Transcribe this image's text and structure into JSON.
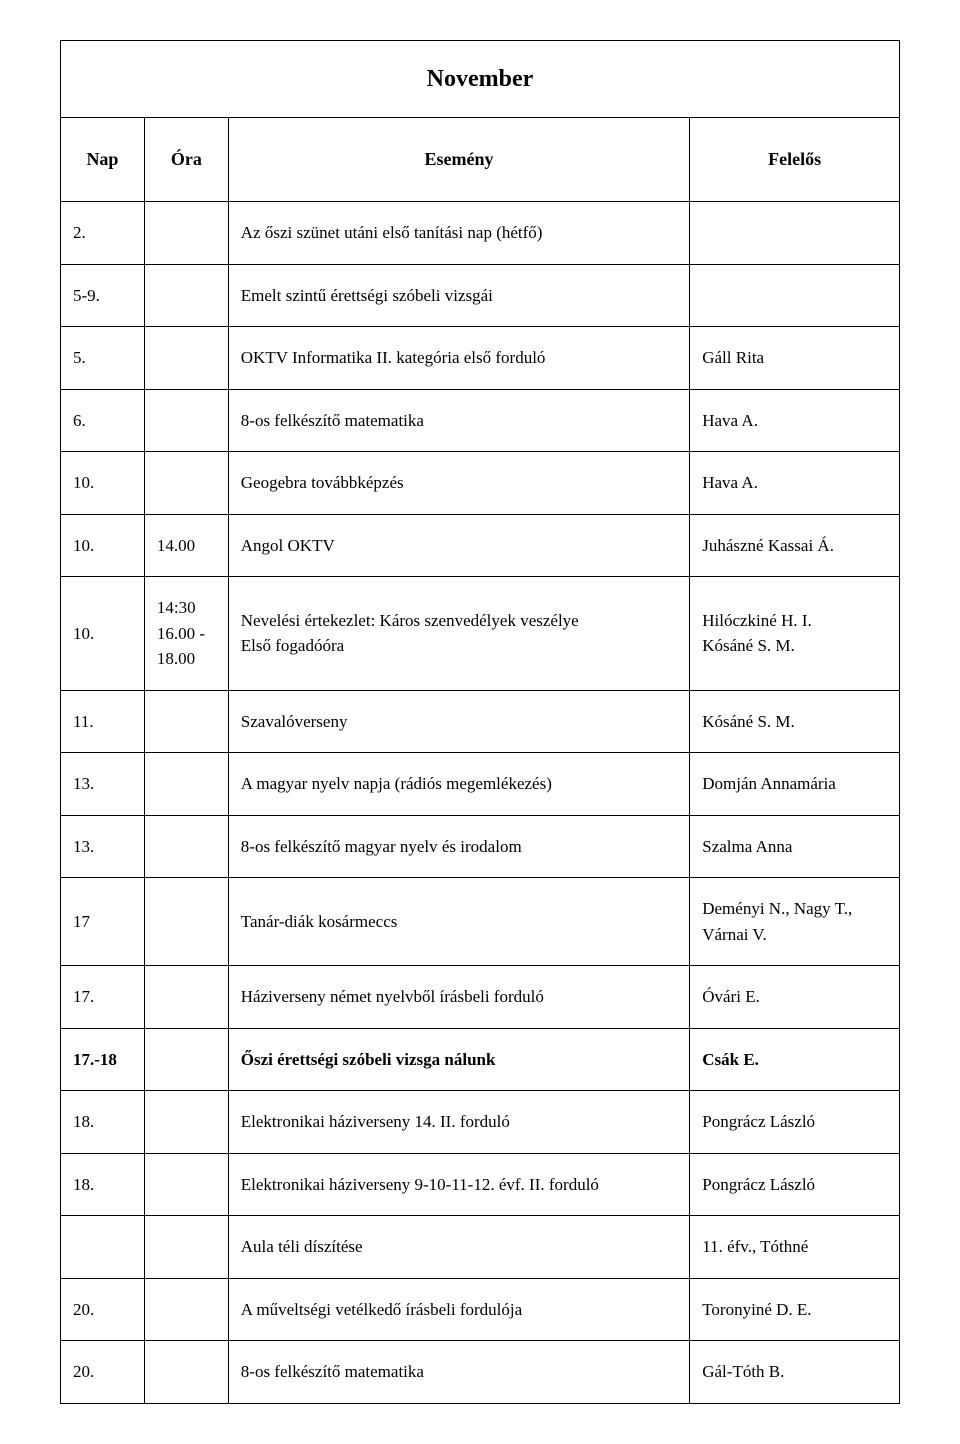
{
  "title": "November",
  "columns": {
    "nap": "Nap",
    "ora": "Óra",
    "esemeny": "Esemény",
    "felelos": "Felelős"
  },
  "rows": [
    {
      "nap": "2.",
      "ora": "",
      "esemeny": "Az őszi szünet utáni első tanítási nap (hétfő)",
      "felelos": "",
      "bold": false
    },
    {
      "nap": "5-9.",
      "ora": "",
      "esemeny": "Emelt szintű érettségi szóbeli vizsgái",
      "felelos": "",
      "bold": false
    },
    {
      "nap": "5.",
      "ora": "",
      "esemeny": "OKTV Informatika II. kategória első forduló",
      "felelos": "Gáll Rita",
      "bold": false
    },
    {
      "nap": "6.",
      "ora": "",
      "esemeny": "8-os felkészítő matematika",
      "felelos": "Hava A.",
      "bold": false
    },
    {
      "nap": "10.",
      "ora": "",
      "esemeny": "Geogebra továbbképzés",
      "felelos": "Hava A.",
      "bold": false
    },
    {
      "nap": "10.",
      "ora": "14.00",
      "esemeny": "Angol OKTV",
      "felelos": "Juhászné Kassai Á.",
      "bold": false
    },
    {
      "nap": "10.",
      "ora": "14:30\n16.00 - 18.00",
      "esemeny": "Nevelési értekezlet: Káros szenvedélyek veszélye\nElső fogadóóra",
      "felelos": "Hilóczkiné H. I.\nKósáné S. M.",
      "bold": false
    },
    {
      "nap": "11.",
      "ora": "",
      "esemeny": "Szavalóverseny",
      "felelos": "Kósáné S. M.",
      "bold": false
    },
    {
      "nap": "13.",
      "ora": "",
      "esemeny": "A magyar nyelv napja (rádiós megemlékezés)",
      "felelos": "Domján Annamária",
      "bold": false
    },
    {
      "nap": "13.",
      "ora": "",
      "esemeny": "8-os felkészítő magyar nyelv és irodalom",
      "felelos": "Szalma Anna",
      "bold": false
    },
    {
      "nap": "17",
      "ora": "",
      "esemeny": "Tanár-diák kosármeccs",
      "felelos": "Deményi N., Nagy T., Várnai V.",
      "bold": false
    },
    {
      "nap": "17.",
      "ora": "",
      "esemeny": "Háziverseny német nyelvből írásbeli forduló",
      "felelos": "Óvári E.",
      "bold": false
    },
    {
      "nap": "17.-18",
      "ora": "",
      "esemeny": "Őszi érettségi szóbeli vizsga nálunk",
      "felelos": "Csák E.",
      "bold": true
    },
    {
      "nap": "18.",
      "ora": "",
      "esemeny": "Elektronikai háziverseny 14. II. forduló",
      "felelos": "Pongrácz László",
      "bold": false
    },
    {
      "nap": "18.",
      "ora": "",
      "esemeny": "Elektronikai háziverseny 9-10-11-12. évf. II. forduló",
      "felelos": "Pongrácz László",
      "bold": false
    },
    {
      "nap": "",
      "ora": "",
      "esemeny": "Aula téli díszítése",
      "felelos": "11. éfv., Tóthné",
      "bold": false
    },
    {
      "nap": "20.",
      "ora": "",
      "esemeny": "A műveltségi vetélkedő írásbeli fordulója",
      "felelos": "Toronyiné D. E.",
      "bold": false
    },
    {
      "nap": "20.",
      "ora": "",
      "esemeny": "8-os felkészítő matematika",
      "felelos": "Gál-Tóth B.",
      "bold": false
    }
  ],
  "style": {
    "font_family": "Times New Roman",
    "title_fontsize": 24,
    "header_fontsize": 18,
    "cell_fontsize": 17,
    "border_color": "#000000",
    "background_color": "#ffffff",
    "text_color": "#000000",
    "col_widths": {
      "nap": "10%",
      "ora": "10%",
      "esemeny": "55%",
      "felelos": "25%"
    }
  }
}
